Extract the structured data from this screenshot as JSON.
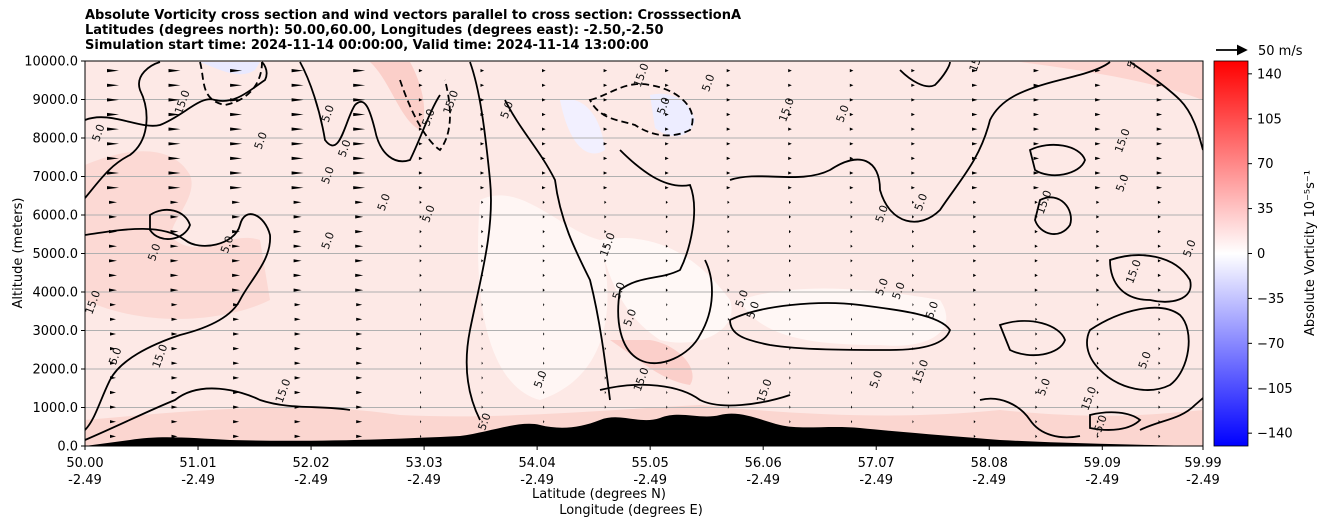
{
  "title_lines": [
    "Absolute Vorticity cross section and wind vectors parallel to cross section: CrosssectionA",
    "Latitudes (degrees north): 50.00,60.00, Longitudes (degrees east): -2.50,-2.50",
    "Simulation start time: 2024-11-14 00:00:00, Valid time: 2024-11-14 13:00:00"
  ],
  "wind_key_label": "50 m/s",
  "chart_data": {
    "type": "heatmap",
    "title": "Absolute Vorticity cross section and wind vectors parallel to cross section: CrosssectionA",
    "ylabel": "Altitude (meters)",
    "xlabel_line1": "Latitude (degrees N)",
    "xlabel_line2": "Longitude (degrees E)",
    "ylim": [
      0,
      10000
    ],
    "xlim": [
      50.0,
      59.99
    ],
    "y_ticks": [
      "0.0",
      "1000.0",
      "2000.0",
      "3000.0",
      "4000.0",
      "5000.0",
      "6000.0",
      "7000.0",
      "8000.0",
      "9000.0",
      "10000.0"
    ],
    "y_tick_values": [
      0,
      1000,
      2000,
      3000,
      4000,
      5000,
      6000,
      7000,
      8000,
      9000,
      10000
    ],
    "x_ticks_lat": [
      "50.00",
      "51.01",
      "52.02",
      "53.03",
      "54.04",
      "55.05",
      "56.06",
      "57.07",
      "58.08",
      "59.09",
      "59.99"
    ],
    "x_tick_values": [
      50.0,
      51.01,
      52.02,
      53.03,
      54.04,
      55.05,
      56.06,
      57.07,
      58.08,
      59.09,
      59.99
    ],
    "x_ticks_lon": [
      "-2.49",
      "-2.49",
      "-2.49",
      "-2.49",
      "-2.49",
      "-2.49",
      "-2.49",
      "-2.49",
      "-2.49",
      "-2.49",
      "-2.49"
    ],
    "horizontal_grid": true,
    "colorbar": {
      "label": "Absolute Vorticity 10⁻⁵s⁻¹",
      "range": [
        -150,
        150
      ],
      "ticks": [
        "140",
        "105",
        "70",
        "35",
        "0",
        "−35",
        "−70",
        "−105",
        "−140"
      ],
      "tick_values": [
        140,
        105,
        70,
        35,
        0,
        -35,
        -70,
        -105,
        -140
      ],
      "colormap": "bwr",
      "low_color": "#0000ff",
      "mid_color": "#ffffff",
      "high_color": "#ff0000"
    },
    "contour_labels": [
      {
        "text": "15.0",
        "lat": 50.9,
        "alt": 8900
      },
      {
        "text": "5.0",
        "lat": 50.15,
        "alt": 8100
      },
      {
        "text": "5.0",
        "lat": 51.6,
        "alt": 7900
      },
      {
        "text": "5.0",
        "lat": 52.2,
        "alt": 8600
      },
      {
        "text": "5.0",
        "lat": 52.35,
        "alt": 7700
      },
      {
        "text": "5.0",
        "lat": 53.1,
        "alt": 8500
      },
      {
        "text": "15.0",
        "lat": 53.3,
        "alt": 8900
      },
      {
        "text": "5.0",
        "lat": 53.8,
        "alt": 8700
      },
      {
        "text": "15.0",
        "lat": 55.0,
        "alt": 9600
      },
      {
        "text": "5.0",
        "lat": 55.2,
        "alt": 8800
      },
      {
        "text": "5.0",
        "lat": 55.6,
        "alt": 9400
      },
      {
        "text": "15.0",
        "lat": 56.3,
        "alt": 8700
      },
      {
        "text": "5.0",
        "lat": 56.8,
        "alt": 8600
      },
      {
        "text": "15.0",
        "lat": 58.0,
        "alt": 10000
      },
      {
        "text": "5.0",
        "lat": 59.4,
        "alt": 10000
      },
      {
        "text": "15.0",
        "lat": 59.3,
        "alt": 7900
      },
      {
        "text": "5.0",
        "lat": 52.2,
        "alt": 7000
      },
      {
        "text": "5.0",
        "lat": 52.2,
        "alt": 5300
      },
      {
        "text": "5.0",
        "lat": 51.3,
        "alt": 5200
      },
      {
        "text": "5.0",
        "lat": 50.65,
        "alt": 5000
      },
      {
        "text": "5.0",
        "lat": 53.1,
        "alt": 6000
      },
      {
        "text": "5.0",
        "lat": 52.7,
        "alt": 6300
      },
      {
        "text": "15.0",
        "lat": 54.7,
        "alt": 5200
      },
      {
        "text": "5.0",
        "lat": 54.8,
        "alt": 4000
      },
      {
        "text": "5.0",
        "lat": 54.9,
        "alt": 3300
      },
      {
        "text": "5.0",
        "lat": 55.9,
        "alt": 3800
      },
      {
        "text": "5.0",
        "lat": 56.0,
        "alt": 3500
      },
      {
        "text": "5.0",
        "lat": 57.15,
        "alt": 6000
      },
      {
        "text": "5.0",
        "lat": 57.5,
        "alt": 6300
      },
      {
        "text": "15.0",
        "lat": 58.6,
        "alt": 6300
      },
      {
        "text": "5.0",
        "lat": 59.3,
        "alt": 6800
      },
      {
        "text": "15.0",
        "lat": 59.4,
        "alt": 4500
      },
      {
        "text": "5.0",
        "lat": 59.9,
        "alt": 5100
      },
      {
        "text": "5.0",
        "lat": 57.15,
        "alt": 4100
      },
      {
        "text": "5.0",
        "lat": 57.3,
        "alt": 4000
      },
      {
        "text": "5.0",
        "lat": 57.6,
        "alt": 3500
      },
      {
        "text": "15.0",
        "lat": 50.1,
        "alt": 3700
      },
      {
        "text": "5.0",
        "lat": 50.3,
        "alt": 2300
      },
      {
        "text": "15.0",
        "lat": 50.7,
        "alt": 2300
      },
      {
        "text": "15.0",
        "lat": 55.0,
        "alt": 1700
      },
      {
        "text": "15.0",
        "lat": 56.1,
        "alt": 1400
      },
      {
        "text": "5.0",
        "lat": 57.1,
        "alt": 1700
      },
      {
        "text": "15.0",
        "lat": 57.5,
        "alt": 1900
      },
      {
        "text": "5.0",
        "lat": 58.6,
        "alt": 1500
      },
      {
        "text": "15.0",
        "lat": 59.0,
        "alt": 1200
      },
      {
        "text": "5.0",
        "lat": 59.5,
        "alt": 2200
      },
      {
        "text": "-5.0",
        "lat": 59.1,
        "alt": 500
      },
      {
        "text": "15.0",
        "lat": 51.8,
        "alt": 1400
      },
      {
        "text": "5.0",
        "lat": 53.6,
        "alt": 600
      },
      {
        "text": "5.0",
        "lat": 54.1,
        "alt": 1700
      }
    ]
  }
}
